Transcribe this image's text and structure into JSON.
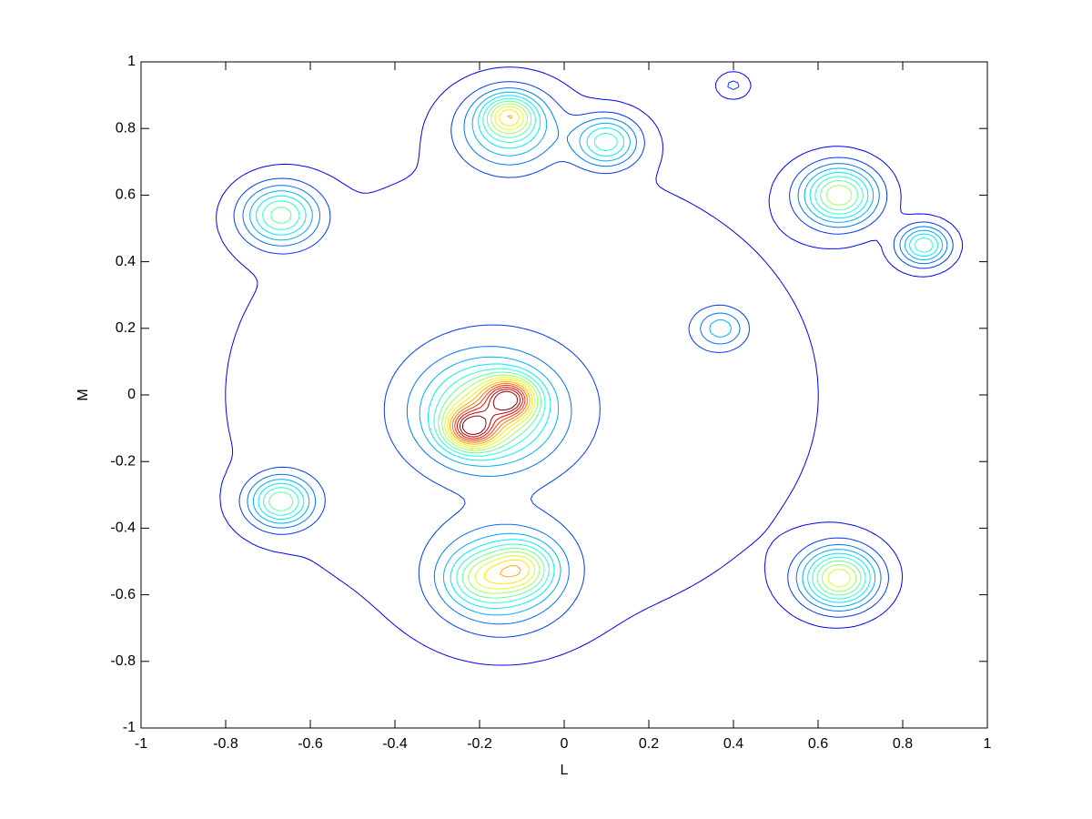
{
  "chart_data": {
    "type": "contour",
    "xlabel": "L",
    "ylabel": "M",
    "xlim": [
      -1,
      1
    ],
    "ylim": [
      -1,
      1
    ],
    "xticks": [
      -1,
      -0.8,
      -0.6,
      -0.4,
      -0.2,
      0,
      0.2,
      0.4,
      0.6,
      0.8,
      1
    ],
    "yticks": [
      -1,
      -0.8,
      -0.6,
      -0.4,
      -0.2,
      0,
      0.2,
      0.4,
      0.6,
      0.8,
      1
    ],
    "colormap": "jet",
    "levels": [
      0.04,
      0.1,
      0.16,
      0.22,
      0.28,
      0.34,
      0.4,
      0.46,
      0.52,
      0.58,
      0.64,
      0.7,
      0.76,
      0.82,
      0.88,
      0.94
    ],
    "peaks": [
      {
        "x": -0.1,
        "y": 0,
        "amplitude": 0.09,
        "sigma": 0.55
      },
      {
        "x": -0.22,
        "y": -0.1,
        "amplitude": 0.55,
        "sigma": 0.04
      },
      {
        "x": -0.13,
        "y": -0.01,
        "amplitude": 0.55,
        "sigma": 0.04
      },
      {
        "x": -0.18,
        "y": -0.05,
        "amplitude": 0.5,
        "sigma": 0.1
      },
      {
        "x": -0.2,
        "y": -0.55,
        "amplitude": 0.2,
        "sigma": 0.05
      },
      {
        "x": -0.1,
        "y": -0.52,
        "amplitude": 0.3,
        "sigma": 0.05
      },
      {
        "x": -0.15,
        "y": -0.55,
        "amplitude": 0.3,
        "sigma": 0.1
      },
      {
        "x": -0.13,
        "y": 0.84,
        "amplitude": 0.35,
        "sigma": 0.04
      },
      {
        "x": -0.13,
        "y": 0.8,
        "amplitude": 0.3,
        "sigma": 0.08
      },
      {
        "x": 0.1,
        "y": 0.76,
        "amplitude": 0.35,
        "sigma": 0.05
      },
      {
        "x": -0.67,
        "y": 0.54,
        "amplitude": 0.4,
        "sigma": 0.06
      },
      {
        "x": -0.67,
        "y": -0.32,
        "amplitude": 0.42,
        "sigma": 0.05
      },
      {
        "x": 0.65,
        "y": 0.6,
        "amplitude": 0.5,
        "sigma": 0.06
      },
      {
        "x": 0.85,
        "y": 0.45,
        "amplitude": 0.38,
        "sigma": 0.04
      },
      {
        "x": 0.65,
        "y": -0.55,
        "amplitude": 0.55,
        "sigma": 0.06
      },
      {
        "x": 0.37,
        "y": 0.2,
        "amplitude": 0.2,
        "sigma": 0.04
      },
      {
        "x": 0.4,
        "y": 0.93,
        "amplitude": 0.1,
        "sigma": 0.025
      }
    ]
  }
}
